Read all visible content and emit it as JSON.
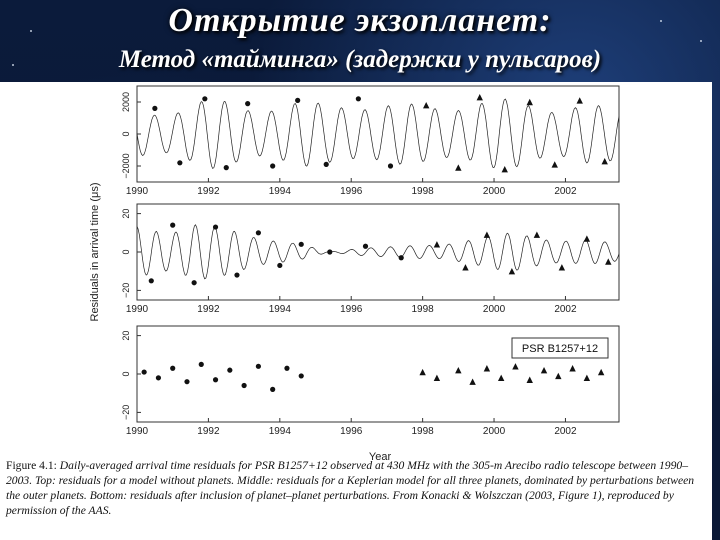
{
  "slide": {
    "title": "Открытие экзопланет:",
    "subtitle": "Метод «тайминга» (задержки у пульсаров)"
  },
  "figure": {
    "ylabel": "Residuals in arrival time (μs)",
    "xlabel": "Year",
    "legend": "PSR B1257+12",
    "caption_label": "Figure 4.1:",
    "caption_text": "Daily-averaged arrival time residuals for PSR B1257+12 observed at 430 MHz with the 305-m Arecibo radio telescope between 1990–2003. Top: residuals for a model without planets. Middle: residuals for a Keplerian model for all three planets, dominated by perturbations between the outer planets. Bottom: residuals after inclusion of planet–planet perturbations. From Konacki & Wolszczan (2003, Figure 1), reproduced by permission of the AAS."
  },
  "chart_data": [
    {
      "type": "line",
      "panel": "top",
      "xlim": [
        1990,
        2003.5
      ],
      "ylim": [
        -3000,
        3000
      ],
      "x_ticks": [
        "1990",
        "1992",
        "1994",
        "1996",
        "1998",
        "2000",
        "2002"
      ],
      "y_ticks": [
        "−2000",
        "0",
        "2000"
      ],
      "series": [
        {
          "x": [
            1990.5,
            1991.2,
            1991.9,
            1992.5,
            1993.1,
            1993.8,
            1994.5,
            1995.3,
            1996.2,
            1997.1,
            1998.1,
            1999.0,
            1999.6,
            2000.3,
            2001.0,
            2001.7,
            2002.4,
            2003.1
          ],
          "y": [
            1600,
            -1800,
            2200,
            -2100,
            1900,
            -2000,
            2100,
            -1900,
            2200,
            -2000,
            1800,
            -2100,
            2300,
            -2200,
            2000,
            -1900,
            2100,
            -1700
          ]
        }
      ]
    },
    {
      "type": "line",
      "panel": "middle",
      "xlim": [
        1990,
        2003.5
      ],
      "ylim": [
        -25,
        25
      ],
      "x_ticks": [
        "1990",
        "1992",
        "1994",
        "1996",
        "1998",
        "2000",
        "2002"
      ],
      "y_ticks": [
        "−20",
        "0",
        "20"
      ],
      "series": [
        {
          "x": [
            1990.4,
            1991.0,
            1991.6,
            1992.2,
            1992.8,
            1993.4,
            1994.0,
            1994.6,
            1995.4,
            1996.4,
            1997.4,
            1998.4,
            1999.2,
            1999.8,
            2000.5,
            2001.2,
            2001.9,
            2002.6,
            2003.2
          ],
          "y": [
            -15,
            14,
            -16,
            13,
            -12,
            10,
            -7,
            4,
            0,
            3,
            -3,
            4,
            -8,
            9,
            -10,
            9,
            -8,
            7,
            -5
          ]
        }
      ]
    },
    {
      "type": "scatter",
      "panel": "bottom",
      "xlim": [
        1990,
        2003.5
      ],
      "ylim": [
        -25,
        25
      ],
      "x_ticks": [
        "1990",
        "1992",
        "1994",
        "1996",
        "1998",
        "2000",
        "2002"
      ],
      "y_ticks": [
        "−20",
        "0",
        "20"
      ],
      "series": [
        {
          "x": [
            1990.2,
            1990.6,
            1991.0,
            1991.4,
            1991.8,
            1992.2,
            1992.6,
            1993.0,
            1993.4,
            1993.8,
            1994.2,
            1994.6,
            1998.0,
            1998.4,
            1999.0,
            1999.4,
            1999.8,
            2000.2,
            2000.6,
            2001.0,
            2001.4,
            2001.8,
            2002.2,
            2002.6,
            2003.0
          ],
          "y": [
            1,
            -2,
            3,
            -4,
            5,
            -3,
            2,
            -6,
            4,
            -8,
            3,
            -1,
            1,
            -2,
            2,
            -4,
            3,
            -2,
            4,
            -3,
            2,
            -1,
            3,
            -2,
            1
          ]
        }
      ]
    }
  ]
}
